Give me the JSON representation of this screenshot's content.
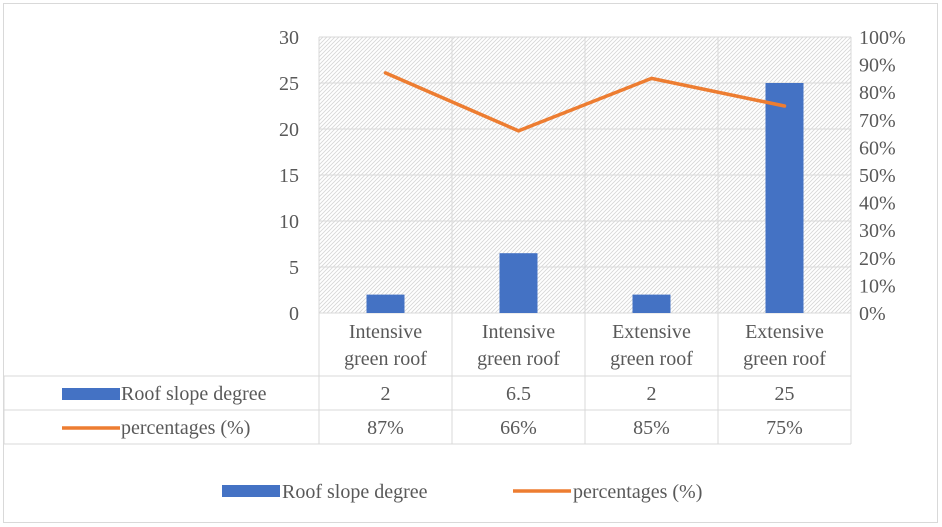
{
  "chart_data": {
    "type": "bar",
    "title": "",
    "categories": [
      [
        "Intensive",
        "green roof"
      ],
      [
        "Intensive",
        "green roof"
      ],
      [
        "Extensive",
        "green roof"
      ],
      [
        "Extensive",
        "green roof"
      ]
    ],
    "series": [
      {
        "name": "Roof slope degree",
        "type": "bar",
        "axis": "left",
        "color": "#4472c4",
        "values": [
          2,
          6.5,
          2,
          25
        ],
        "table_labels": [
          "2",
          "6.5",
          "2",
          "25"
        ]
      },
      {
        "name": "percentages (%)",
        "type": "line",
        "axis": "right",
        "color": "#ed7d31",
        "values": [
          87,
          66,
          85,
          75
        ],
        "table_labels": [
          "87%",
          "66%",
          "85%",
          "75%"
        ]
      }
    ],
    "y_left": {
      "min": 0,
      "max": 30,
      "ticks": [
        "0",
        "5",
        "10",
        "15",
        "20",
        "25",
        "30"
      ]
    },
    "y_right": {
      "min": 0,
      "max": 100,
      "ticks": [
        "0%",
        "10%",
        "20%",
        "30%",
        "40%",
        "50%",
        "60%",
        "70%",
        "80%",
        "90%",
        "100%"
      ]
    },
    "grid": true,
    "plot_background": "hatched",
    "data_table": true,
    "legend": "bottom"
  }
}
